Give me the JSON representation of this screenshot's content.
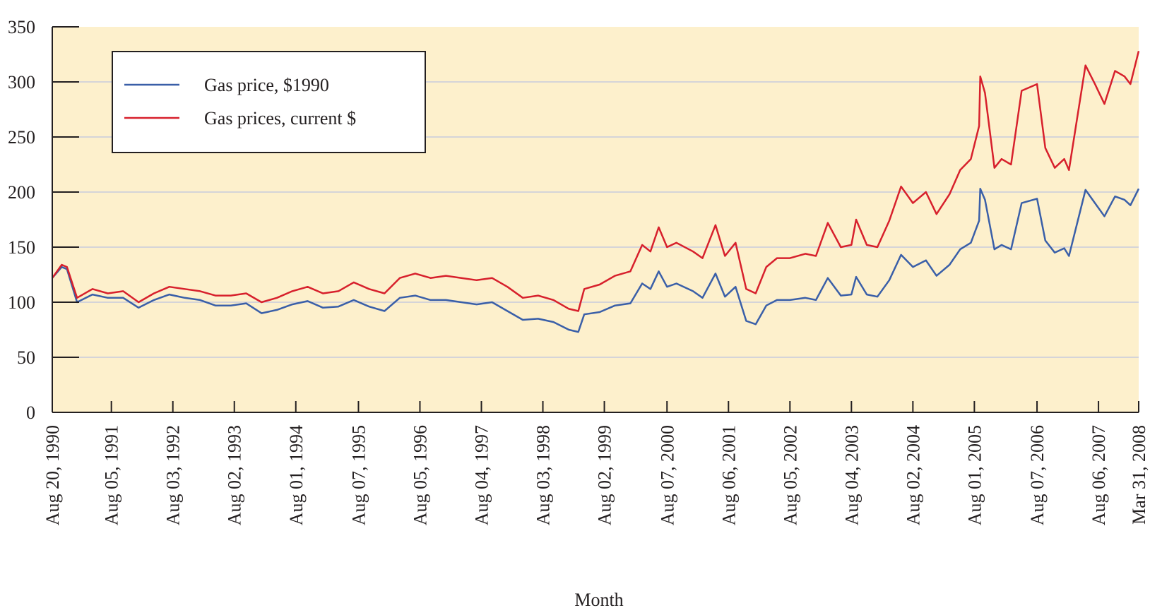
{
  "chart_data": {
    "type": "line",
    "x_label": "Month",
    "x": [
      "1990-08-20",
      "1990-10-15",
      "1990-11-15",
      "1991-01-14",
      "1991-04-15",
      "1991-07-15",
      "1991-10-14",
      "1992-01-13",
      "1992-04-13",
      "1992-07-13",
      "1992-10-12",
      "1993-01-11",
      "1993-04-12",
      "1993-07-12",
      "1993-10-11",
      "1994-01-10",
      "1994-04-11",
      "1994-07-11",
      "1994-10-10",
      "1995-01-09",
      "1995-04-10",
      "1995-07-10",
      "1995-10-09",
      "1996-01-08",
      "1996-04-08",
      "1996-07-08",
      "1996-10-07",
      "1997-01-06",
      "1997-04-07",
      "1997-07-07",
      "1997-10-06",
      "1998-01-05",
      "1998-04-06",
      "1998-07-06",
      "1998-10-05",
      "1999-01-04",
      "1999-03-01",
      "1999-04-05",
      "1999-07-05",
      "1999-10-04",
      "2000-01-03",
      "2000-03-13",
      "2000-05-01",
      "2000-06-19",
      "2000-08-07",
      "2000-10-02",
      "2001-01-08",
      "2001-03-05",
      "2001-05-21",
      "2001-07-16",
      "2001-09-17",
      "2001-11-19",
      "2002-01-14",
      "2002-03-18",
      "2002-05-20",
      "2002-08-05",
      "2002-11-04",
      "2003-01-06",
      "2003-03-17",
      "2003-06-02",
      "2003-08-04",
      "2003-09-01",
      "2003-11-03",
      "2004-01-05",
      "2004-03-15",
      "2004-05-24",
      "2004-08-02",
      "2004-10-18",
      "2004-12-20",
      "2005-03-07",
      "2005-05-09",
      "2005-07-11",
      "2005-08-29",
      "2005-09-05",
      "2005-10-03",
      "2005-11-28",
      "2006-01-09",
      "2006-03-06",
      "2006-05-08",
      "2006-08-07",
      "2006-09-25",
      "2006-11-20",
      "2007-01-15",
      "2007-02-12",
      "2007-05-21",
      "2007-07-16",
      "2007-09-10",
      "2007-11-12",
      "2008-01-07",
      "2008-02-11",
      "2008-03-31"
    ],
    "series": [
      {
        "name": "Gas price, $1990",
        "color": "#3a5fa8",
        "values": [
          122,
          132,
          130,
          100,
          107,
          104,
          104,
          95,
          102,
          107,
          104,
          102,
          97,
          97,
          99,
          90,
          93,
          98,
          101,
          95,
          96,
          102,
          96,
          92,
          104,
          106,
          102,
          102,
          100,
          98,
          100,
          92,
          84,
          85,
          82,
          75,
          73,
          89,
          91,
          97,
          99,
          117,
          112,
          128,
          114,
          117,
          110,
          104,
          126,
          105,
          114,
          83,
          80,
          97,
          102,
          102,
          104,
          102,
          122,
          106,
          107,
          123,
          107,
          105,
          120,
          143,
          132,
          138,
          124,
          134,
          148,
          154,
          174,
          203,
          193,
          148,
          152,
          148,
          190,
          194,
          156,
          145,
          149,
          142,
          202,
          190,
          178,
          196,
          193,
          188,
          203
        ]
      },
      {
        "name": "Gas prices, current $",
        "color": "#d7202c",
        "values": [
          122,
          134,
          132,
          104,
          112,
          108,
          110,
          100,
          108,
          114,
          112,
          110,
          106,
          106,
          108,
          100,
          104,
          110,
          114,
          108,
          110,
          118,
          112,
          108,
          122,
          126,
          122,
          124,
          122,
          120,
          122,
          114,
          104,
          106,
          102,
          94,
          92,
          112,
          116,
          124,
          128,
          152,
          146,
          168,
          150,
          154,
          146,
          140,
          170,
          142,
          154,
          112,
          108,
          132,
          140,
          140,
          144,
          142,
          172,
          150,
          152,
          175,
          152,
          150,
          174,
          205,
          190,
          200,
          180,
          198,
          220,
          230,
          260,
          305,
          290,
          222,
          230,
          225,
          292,
          298,
          240,
          222,
          230,
          220,
          315,
          298,
          280,
          310,
          305,
          298,
          328
        ]
      }
    ],
    "xlim": [
      "1990-08-20",
      "2008-03-31"
    ],
    "xticks": [
      {
        "value": "1990-08-20",
        "label": "Aug 20, 1990"
      },
      {
        "value": "1991-08-05",
        "label": "Aug 05, 1991"
      },
      {
        "value": "1992-08-03",
        "label": "Aug 03, 1992"
      },
      {
        "value": "1993-08-02",
        "label": "Aug 02, 1993"
      },
      {
        "value": "1994-08-01",
        "label": "Aug 01, 1994"
      },
      {
        "value": "1995-08-07",
        "label": "Aug 07, 1995"
      },
      {
        "value": "1996-08-05",
        "label": "Aug 05, 1996"
      },
      {
        "value": "1997-08-04",
        "label": "Aug 04, 1997"
      },
      {
        "value": "1998-08-03",
        "label": "Aug 03, 1998"
      },
      {
        "value": "1999-08-02",
        "label": "Aug 02, 1999"
      },
      {
        "value": "2000-08-07",
        "label": "Aug 07, 2000"
      },
      {
        "value": "2001-08-06",
        "label": "Aug 06, 2001"
      },
      {
        "value": "2002-08-05",
        "label": "Aug 05, 2002"
      },
      {
        "value": "2003-08-04",
        "label": "Aug 04, 2003"
      },
      {
        "value": "2004-08-02",
        "label": "Aug 02, 2004"
      },
      {
        "value": "2005-08-01",
        "label": "Aug 01, 2005"
      },
      {
        "value": "2006-08-07",
        "label": "Aug 07, 2006"
      },
      {
        "value": "2007-08-06",
        "label": "Aug 06, 2007"
      },
      {
        "value": "2008-03-31",
        "label": "Mar 31, 2008"
      }
    ],
    "ylim": [
      0,
      350
    ],
    "yticks": [
      0,
      50,
      100,
      150,
      200,
      250,
      300,
      350
    ],
    "grid": true,
    "legend": "upper left"
  }
}
